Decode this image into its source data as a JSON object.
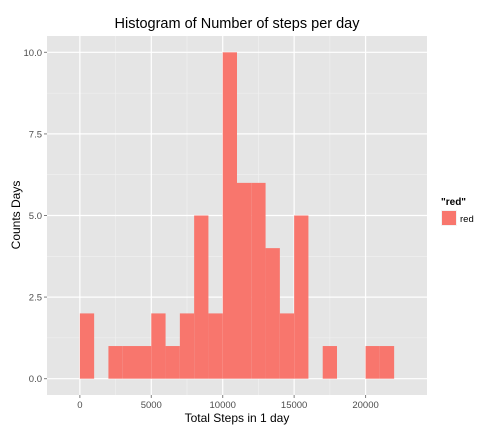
{
  "chart_data": {
    "type": "bar",
    "title": "Histogram of Number of steps per day",
    "xlabel": "Total Steps in 1 day",
    "ylabel": "Counts Days",
    "xlim": [
      -2300,
      24300
    ],
    "ylim": [
      -0.5,
      10.5
    ],
    "xticks": [
      0,
      5000,
      10000,
      15000,
      20000
    ],
    "xtick_labels": [
      "0",
      "5000",
      "10000",
      "15000",
      "20000"
    ],
    "yticks": [
      0,
      2.5,
      5,
      7.5,
      10
    ],
    "ytick_labels": [
      "0.0",
      "2.5",
      "5.0",
      "7.5",
      "10.0"
    ],
    "bin_width": 1000,
    "bins": [
      {
        "x0": 0,
        "x1": 1000,
        "count": 2
      },
      {
        "x0": 2000,
        "x1": 3000,
        "count": 1
      },
      {
        "x0": 3000,
        "x1": 4000,
        "count": 1
      },
      {
        "x0": 4000,
        "x1": 5000,
        "count": 1
      },
      {
        "x0": 5000,
        "x1": 6000,
        "count": 2
      },
      {
        "x0": 6000,
        "x1": 7000,
        "count": 1
      },
      {
        "x0": 7000,
        "x1": 8000,
        "count": 2
      },
      {
        "x0": 8000,
        "x1": 9000,
        "count": 5
      },
      {
        "x0": 9000,
        "x1": 10000,
        "count": 2
      },
      {
        "x0": 10000,
        "x1": 11000,
        "count": 10
      },
      {
        "x0": 11000,
        "x1": 12000,
        "count": 6
      },
      {
        "x0": 12000,
        "x1": 13000,
        "count": 6
      },
      {
        "x0": 13000,
        "x1": 14000,
        "count": 4
      },
      {
        "x0": 14000,
        "x1": 15000,
        "count": 2
      },
      {
        "x0": 15000,
        "x1": 16000,
        "count": 5
      },
      {
        "x0": 17000,
        "x1": 18000,
        "count": 1
      },
      {
        "x0": 20000,
        "x1": 21000,
        "count": 1
      },
      {
        "x0": 21000,
        "x1": 22000,
        "count": 1
      }
    ],
    "grid": true,
    "colors": {
      "panel_background": "#e5e5e5",
      "grid_major": "#ffffff",
      "grid_minor": "#f2f2f2",
      "bar_fill": "#f8766d",
      "tick_color": "#7f7f7f"
    },
    "legend": {
      "title": "\"red\"",
      "label": "red",
      "position": "right"
    }
  }
}
